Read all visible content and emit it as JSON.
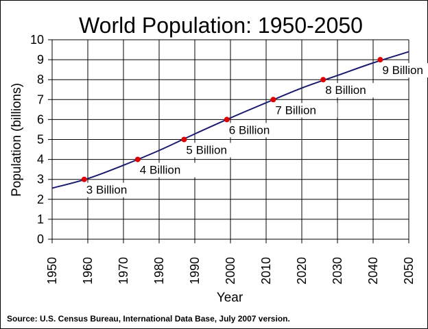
{
  "chart_data": {
    "type": "line",
    "title": "World Population: 1950-2050",
    "xlabel": "Year",
    "ylabel": "Population (billions)",
    "xlim": [
      1950,
      2050
    ],
    "ylim": [
      0,
      10
    ],
    "x_ticks": [
      1950,
      1960,
      1970,
      1980,
      1990,
      2000,
      2010,
      2020,
      2030,
      2040,
      2050
    ],
    "y_ticks": [
      0,
      1,
      2,
      3,
      4,
      5,
      6,
      7,
      8,
      9,
      10
    ],
    "grid": true,
    "series": [
      {
        "x": [
          1950,
          1960,
          1970,
          1980,
          1990,
          2000,
          2010,
          2020,
          2030,
          2040,
          2050
        ],
        "values": [
          2.56,
          3.04,
          3.71,
          4.45,
          5.28,
          6.08,
          6.84,
          7.58,
          8.21,
          8.84,
          9.4
        ],
        "color": "#1a1a6e"
      }
    ],
    "milestones": [
      {
        "x": 1959,
        "y": 3,
        "label": "3 Billion"
      },
      {
        "x": 1974,
        "y": 4,
        "label": "4 Billion"
      },
      {
        "x": 1987,
        "y": 5,
        "label": "5 Billion"
      },
      {
        "x": 1999,
        "y": 6,
        "label": "6 Billion"
      },
      {
        "x": 2012,
        "y": 7,
        "label": "7 Billion"
      },
      {
        "x": 2026,
        "y": 8,
        "label": "8 Billion"
      },
      {
        "x": 2042,
        "y": 9,
        "label": "9 Billion"
      }
    ],
    "milestone_color": "#e00000"
  },
  "source": "Source: U.S. Census Bureau, International Data Base, July 2007 version."
}
